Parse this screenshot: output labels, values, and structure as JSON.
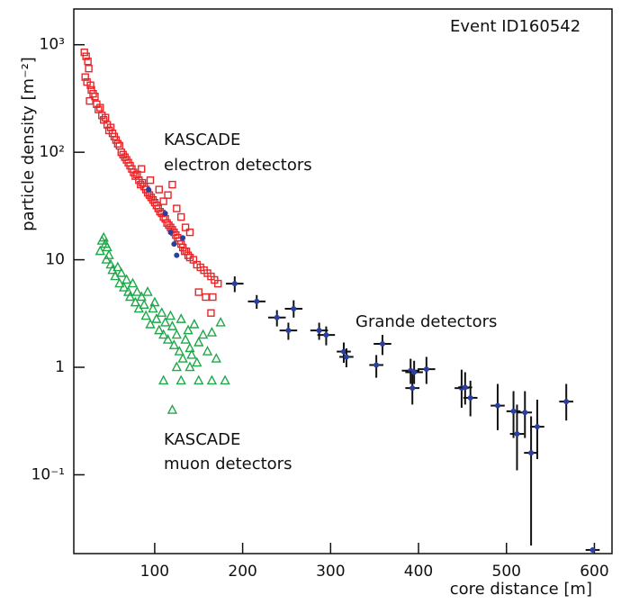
{
  "chart_data": {
    "type": "scatter",
    "xlabel": "core distance  [m]",
    "ylabel": "particle density  [m⁻²]",
    "annotations": [
      "Event ID160542",
      "KASCADE",
      "electron detectors",
      "Grande detectors",
      "KASCADE",
      "muon detectors"
    ],
    "xlim": [
      8,
      620
    ],
    "ylim": [
      0.0185,
      2150
    ],
    "log_y": true,
    "xticks": [
      100,
      200,
      300,
      400,
      500,
      600
    ],
    "yticks": [
      {
        "value": 0.1,
        "label": "10⁻¹"
      },
      1,
      10,
      {
        "value": 100,
        "label": "10²"
      },
      {
        "value": 1000,
        "label": "10³"
      }
    ],
    "series": [
      {
        "color": "#e8262a",
        "marker": "square",
        "x": [
          20,
          22,
          24,
          25,
          21,
          23,
          27,
          28,
          30,
          32,
          26,
          34,
          36,
          38,
          40,
          42,
          44,
          46,
          48,
          50,
          52,
          54,
          56,
          58,
          60,
          62,
          64,
          66,
          68,
          70,
          72,
          74,
          76,
          78,
          80,
          82,
          84,
          86,
          88,
          90,
          92,
          94,
          96,
          98,
          100,
          102,
          104,
          106,
          108,
          110,
          112,
          114,
          116,
          118,
          120,
          122,
          124,
          126,
          128,
          130,
          132,
          134,
          136,
          138,
          140,
          144,
          148,
          152,
          156,
          160,
          164,
          168,
          172,
          150,
          158,
          166,
          164,
          120,
          110,
          105,
          95,
          85,
          125,
          130,
          140,
          115,
          135
        ],
        "values": [
          850,
          780,
          700,
          600,
          500,
          450,
          420,
          380,
          350,
          330,
          300,
          280,
          250,
          260,
          220,
          200,
          210,
          180,
          160,
          170,
          150,
          140,
          130,
          120,
          115,
          100,
          95,
          90,
          85,
          80,
          75,
          70,
          65,
          60,
          62,
          55,
          50,
          52,
          48,
          45,
          42,
          40,
          38,
          36,
          34,
          32,
          30,
          28,
          27,
          25,
          24,
          22,
          21,
          20,
          19,
          18,
          17,
          16,
          15,
          14,
          13,
          12,
          12,
          11,
          10.5,
          10,
          9,
          8.5,
          8,
          7.5,
          7,
          6.5,
          6,
          5,
          4.5,
          4.5,
          3.2,
          50,
          35,
          45,
          55,
          70,
          30,
          25,
          18,
          40,
          20
        ]
      },
      {
        "color": "#1fa84a",
        "marker": "triangle",
        "x": [
          40,
          42,
          44,
          46,
          38,
          48,
          45,
          50,
          52,
          55,
          58,
          60,
          62,
          65,
          68,
          70,
          72,
          75,
          78,
          80,
          82,
          85,
          88,
          90,
          92,
          95,
          98,
          100,
          102,
          105,
          108,
          110,
          112,
          115,
          118,
          120,
          122,
          125,
          128,
          130,
          132,
          135,
          138,
          140,
          142,
          145,
          148,
          150,
          155,
          160,
          165,
          170,
          175,
          180,
          110,
          130,
          150,
          165,
          120,
          125,
          140
        ],
        "values": [
          15,
          16,
          14,
          13,
          12,
          11,
          10,
          9,
          8,
          7,
          8.5,
          6,
          7.5,
          5.5,
          6.5,
          5,
          4.5,
          6,
          4,
          5,
          3.5,
          4.5,
          3.8,
          3,
          5,
          2.5,
          3.5,
          4,
          2.8,
          2.2,
          3.2,
          2,
          2.6,
          1.8,
          3,
          2.4,
          1.6,
          2,
          1.4,
          2.8,
          1.2,
          1.8,
          2.2,
          1.5,
          1.3,
          2.5,
          1.1,
          1.7,
          2,
          1.4,
          2.1,
          1.2,
          2.6,
          0.75,
          0.75,
          0.75,
          0.75,
          0.75,
          0.4,
          1,
          1
        ]
      },
      {
        "color": "#2b3fa0",
        "marker": "cross",
        "x": [
          93,
          112,
          118,
          122,
          125,
          132,
          191,
          216,
          239,
          252,
          258,
          287,
          295,
          315,
          318,
          352,
          359,
          391,
          393,
          395,
          409,
          449,
          453,
          459,
          490,
          508,
          512,
          521,
          528,
          535,
          568,
          598
        ],
        "values": [
          45,
          27,
          18,
          14,
          11,
          16,
          6.0,
          4.1,
          2.9,
          2.2,
          3.5,
          2.2,
          2.0,
          1.4,
          1.25,
          1.05,
          1.65,
          0.93,
          0.64,
          0.9,
          0.96,
          0.64,
          0.65,
          0.52,
          0.44,
          0.39,
          0.24,
          0.38,
          0.16,
          0.28,
          0.48,
          0.02
        ],
        "xerr": [
          0,
          0,
          0,
          0,
          0,
          0,
          10,
          10,
          10,
          10,
          10,
          10,
          10,
          8,
          8,
          8,
          10,
          10,
          8,
          10,
          10,
          8,
          8,
          8,
          8,
          8,
          8,
          8,
          8,
          8,
          8,
          8
        ],
        "ylow": [
          45,
          27,
          18,
          14,
          11,
          16,
          5,
          3.5,
          2.4,
          1.8,
          2.9,
          1.8,
          1.6,
          1.1,
          1.0,
          0.8,
          1.3,
          0.7,
          0.45,
          0.7,
          0.7,
          0.42,
          0.45,
          0.35,
          0.26,
          0.22,
          0.11,
          0.22,
          0.022,
          0.14,
          0.32,
          0.02
        ],
        "yhigh": [
          45,
          27,
          18,
          14,
          11,
          16,
          7,
          4.7,
          3.4,
          2.6,
          4.2,
          2.6,
          2.4,
          1.7,
          1.5,
          1.3,
          2.0,
          1.2,
          0.9,
          1.15,
          1.25,
          0.95,
          0.9,
          0.75,
          0.7,
          0.6,
          0.45,
          0.6,
          0.35,
          0.5,
          0.7,
          0.02
        ]
      }
    ]
  }
}
